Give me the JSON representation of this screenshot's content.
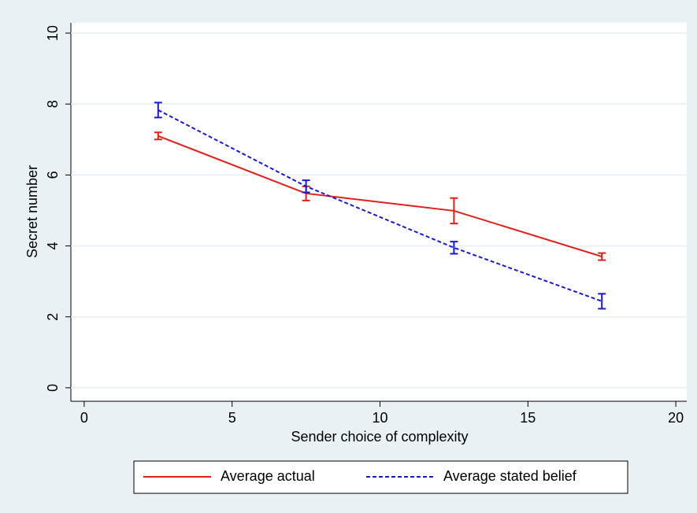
{
  "chart_data": {
    "type": "line",
    "xlabel": "Sender choice of complexity",
    "ylabel": "Secret number",
    "x": [
      2.5,
      7.5,
      12.5,
      17.5
    ],
    "series": [
      {
        "name": "Average actual",
        "color": "#e0201b",
        "dash": false,
        "values": [
          7.1,
          5.48,
          4.99,
          3.7
        ],
        "errors": [
          0.1,
          0.2,
          0.36,
          0.1
        ]
      },
      {
        "name": "Average stated belief",
        "color": "#1a1ad0",
        "dash": true,
        "values": [
          7.83,
          5.68,
          3.95,
          2.44
        ],
        "errors": [
          0.21,
          0.17,
          0.17,
          0.21
        ]
      }
    ],
    "xlim": [
      -0.45,
      20.37
    ],
    "xticks": [
      0,
      5,
      10,
      15,
      20
    ],
    "ylim": [
      -0.38,
      10.29
    ],
    "yticks": [
      0,
      2,
      4,
      6,
      8,
      10
    ],
    "grid": true,
    "legend": "bottom"
  }
}
